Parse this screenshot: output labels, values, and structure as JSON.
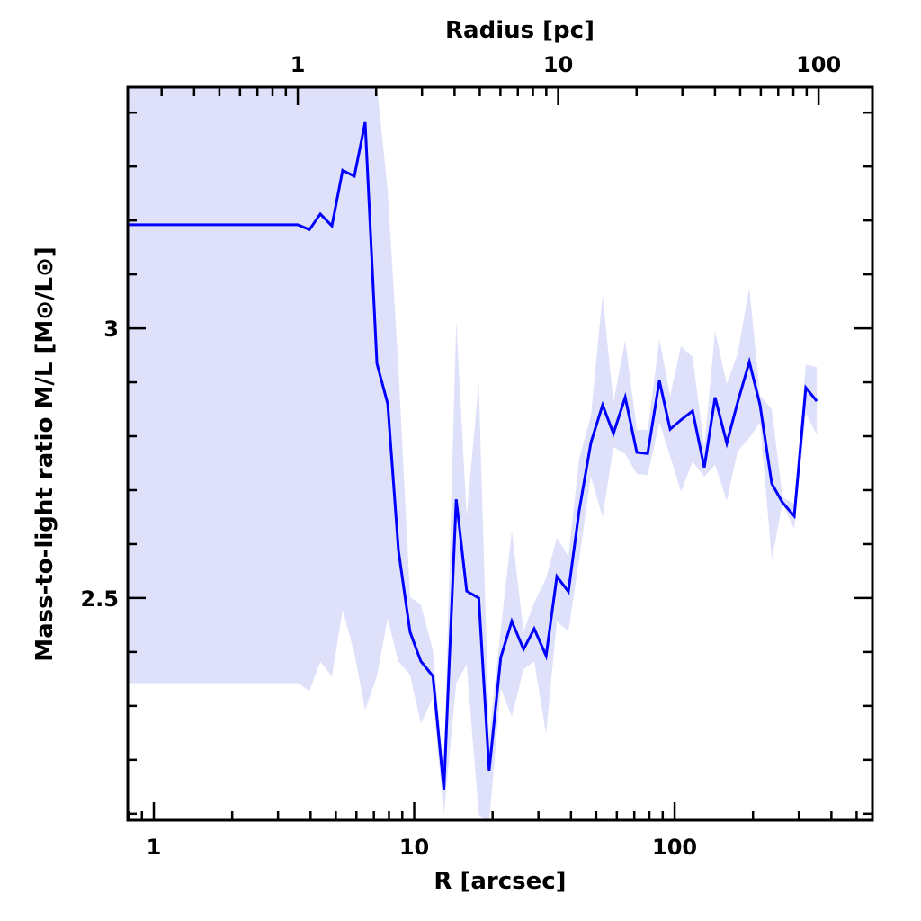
{
  "chart_data": {
    "type": "line",
    "title": "",
    "xlabel": "R [arcsec]",
    "ylabel": "Mass-to-light ratio M/L [M⊙/L⊙]",
    "top_xlabel": "Radius [pc]",
    "xscale": "log",
    "xlim": [
      0.794,
      575
    ],
    "ylim": [
      2.088,
      3.447
    ],
    "pc_per_arcsec": 0.28,
    "x_tick_labels": [
      "1",
      "10",
      "100"
    ],
    "top_tick_labels": [
      "1",
      "10",
      "100"
    ],
    "y_tick_labels": [
      "3",
      "2.5"
    ],
    "grid": false,
    "line_color": "#0000ff",
    "band_color": "#dfe1fb",
    "series": [
      {
        "name": "M/L",
        "x": [
          0.8,
          3.57,
          3.96,
          4.36,
          4.83,
          5.31,
          5.89,
          6.48,
          7.19,
          7.91,
          8.7,
          9.64,
          10.6,
          11.8,
          13.0,
          14.5,
          15.9,
          17.7,
          19.4,
          21.5,
          23.7,
          26.3,
          28.9,
          32.1,
          35.3,
          39.1,
          43.0,
          47.7,
          52.9,
          58.2,
          64.6,
          71.6,
          78.8,
          87.4,
          96.1,
          105.7,
          117.2,
          130,
          143,
          158.6,
          174.6,
          193.6,
          212.8,
          236.1,
          259.6,
          288,
          319,
          351.6
        ],
        "y": [
          3.192,
          3.192,
          3.183,
          3.212,
          3.19,
          3.293,
          3.282,
          3.382,
          2.935,
          2.86,
          2.588,
          2.437,
          2.383,
          2.355,
          2.145,
          2.683,
          2.513,
          2.5,
          2.18,
          2.39,
          2.457,
          2.405,
          2.443,
          2.393,
          2.54,
          2.512,
          2.662,
          2.788,
          2.858,
          2.805,
          2.872,
          2.77,
          2.768,
          2.903,
          2.813,
          2.83,
          2.847,
          2.742,
          2.872,
          2.787,
          2.863,
          2.938,
          2.858,
          2.712,
          2.677,
          2.652,
          2.89,
          2.865
        ],
        "upper": [
          3.6,
          3.6,
          3.6,
          3.6,
          3.6,
          3.6,
          3.6,
          3.6,
          3.45,
          3.255,
          2.925,
          2.502,
          2.488,
          2.403,
          2.175,
          3.015,
          2.652,
          2.9,
          2.242,
          2.442,
          2.625,
          2.438,
          2.492,
          2.537,
          2.612,
          2.577,
          2.758,
          2.838,
          3.062,
          2.863,
          2.978,
          2.812,
          2.812,
          2.98,
          2.875,
          2.967,
          2.947,
          2.78,
          2.995,
          2.897,
          2.953,
          3.075,
          2.875,
          2.85,
          2.687,
          2.675,
          2.933,
          2.928
        ],
        "lower": [
          2.342,
          2.342,
          2.328,
          2.382,
          2.355,
          2.478,
          2.398,
          2.292,
          2.355,
          2.462,
          2.382,
          2.358,
          2.267,
          2.315,
          2.098,
          2.342,
          2.377,
          2.098,
          2.085,
          2.333,
          2.28,
          2.368,
          2.382,
          2.248,
          2.457,
          2.438,
          2.572,
          2.725,
          2.65,
          2.78,
          2.767,
          2.73,
          2.728,
          2.825,
          2.763,
          2.697,
          2.753,
          2.725,
          2.747,
          2.68,
          2.772,
          2.797,
          2.825,
          2.572,
          2.675,
          2.628,
          2.842,
          2.803
        ]
      }
    ]
  }
}
